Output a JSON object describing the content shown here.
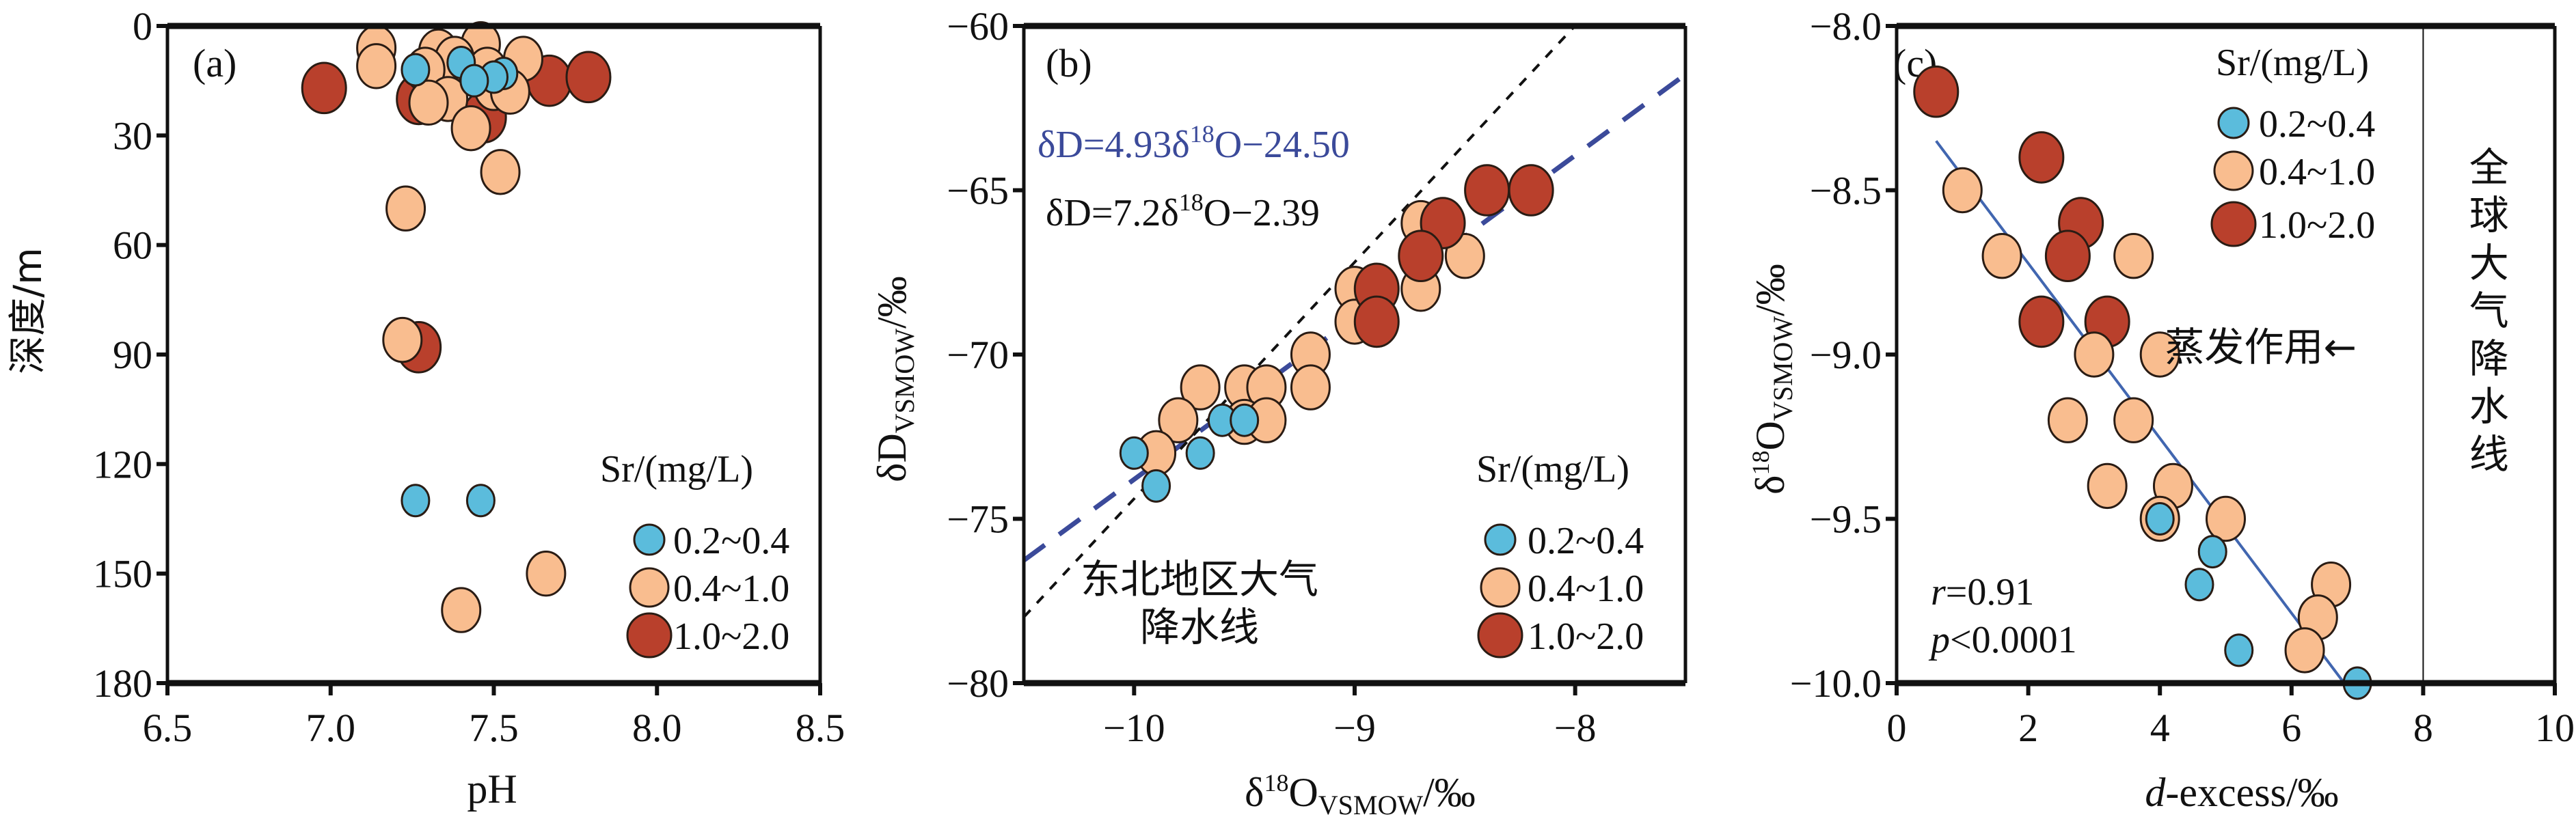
{
  "colors": {
    "low": "#5bbcdc",
    "mid": "#f9bd8f",
    "high": "#b9402c",
    "edge": "#2a1c14",
    "lmwl_local": "#3b4a9a",
    "gmwl": "#111111",
    "regression": "#4166b0"
  },
  "legend": {
    "title": "Sr/(mg/L)",
    "entries": [
      {
        "key": "low",
        "label": "0.2~0.4"
      },
      {
        "key": "mid",
        "label": "0.4~1.0"
      },
      {
        "key": "high",
        "label": "1.0~2.0"
      }
    ]
  },
  "chart_data": [
    {
      "id": "a",
      "type": "scatter",
      "panel_label": "(a)",
      "xlabel": "pH",
      "ylabel": "深度/m",
      "xlim": [
        6.5,
        8.5
      ],
      "ylim": [
        0,
        180
      ],
      "y_inverted": true,
      "xticks": [
        "6.5",
        "7.0",
        "7.5",
        "8.0",
        "8.5"
      ],
      "xtick_values": [
        6.5,
        7.0,
        7.5,
        8.0,
        8.5
      ],
      "yticks": [
        "0",
        "30",
        "60",
        "90",
        "120",
        "150",
        "180"
      ],
      "ytick_values": [
        0,
        30,
        60,
        90,
        120,
        150,
        180
      ],
      "legend_position": "bottom-right",
      "series": [
        {
          "name": "1.0~2.0",
          "key": "high",
          "points": [
            [
              6.98,
              17
            ],
            [
              7.27,
              20
            ],
            [
              7.47,
              25
            ],
            [
              7.67,
              15
            ],
            [
              7.79,
              14
            ],
            [
              7.27,
              88
            ]
          ]
        },
        {
          "name": "0.4~1.0",
          "key": "mid",
          "points": [
            [
              7.14,
              6
            ],
            [
              7.14,
              11
            ],
            [
              7.33,
              7
            ],
            [
              7.46,
              5
            ],
            [
              7.38,
              9
            ],
            [
              7.59,
              9
            ],
            [
              7.29,
              12
            ],
            [
              7.48,
              12
            ],
            [
              7.5,
              17
            ],
            [
              7.55,
              18
            ],
            [
              7.36,
              20
            ],
            [
              7.3,
              21
            ],
            [
              7.43,
              28
            ],
            [
              7.52,
              40
            ],
            [
              7.23,
              50
            ],
            [
              7.22,
              86
            ],
            [
              7.66,
              150
            ],
            [
              7.4,
              160
            ]
          ]
        },
        {
          "name": "0.2~0.4",
          "key": "low",
          "points": [
            [
              7.4,
              10
            ],
            [
              7.26,
              12
            ],
            [
              7.53,
              13
            ],
            [
              7.5,
              14
            ],
            [
              7.44,
              15
            ],
            [
              7.26,
              130
            ],
            [
              7.46,
              130
            ]
          ]
        }
      ]
    },
    {
      "id": "b",
      "type": "scatter",
      "panel_label": "(b)",
      "xlabel": "δ18O_VSMOW/‰",
      "ylabel": "δD_VSMOW/‰",
      "xlim": [
        -10.5,
        -7.5
      ],
      "ylim": [
        -80,
        -60
      ],
      "xticks": [
        "−10",
        "−9",
        "−8"
      ],
      "xtick_values": [
        -10,
        -9,
        -8
      ],
      "yticks": [
        "−60",
        "−65",
        "−70",
        "−75",
        "−80"
      ],
      "ytick_values": [
        -60,
        -65,
        -70,
        -75,
        -80
      ],
      "legend_position": "bottom-right",
      "lines": [
        {
          "name": "local_fit",
          "label": "δD=4.93δ18O−24.50",
          "slope": 4.93,
          "intercept": -24.5,
          "style": "dashed",
          "color_key": "lmwl_local"
        },
        {
          "name": "northeast_lmwl",
          "label": "δD=7.2δ18O−2.39",
          "slope": 7.2,
          "intercept": -2.39,
          "style": "dotted",
          "color_key": "gmwl"
        }
      ],
      "annotations": {
        "eq_blue_main": "δD=4.93δ",
        "eq_blue_sup": "18",
        "eq_blue_tail": "O−24.50",
        "eq_black_main": "δD=7.2δ",
        "eq_black_sup": "18",
        "eq_black_tail": "O−2.39",
        "lmwl_line1": "东北地区大气",
        "lmwl_line2": "降水线"
      },
      "series": [
        {
          "name": "0.4~1.0",
          "key": "mid",
          "points": [
            [
              -8.7,
              -66
            ],
            [
              -8.5,
              -67
            ],
            [
              -8.7,
              -68
            ],
            [
              -9.0,
              -68
            ],
            [
              -9.0,
              -69
            ],
            [
              -9.2,
              -70
            ],
            [
              -9.2,
              -71
            ],
            [
              -9.7,
              -71
            ],
            [
              -9.5,
              -71
            ],
            [
              -9.4,
              -71
            ],
            [
              -9.8,
              -72
            ],
            [
              -9.5,
              -72.05
            ],
            [
              -9.4,
              -72
            ],
            [
              -9.9,
              -73
            ]
          ]
        },
        {
          "name": "1.0~2.0",
          "key": "high",
          "points": [
            [
              -8.4,
              -65
            ],
            [
              -8.2,
              -65
            ],
            [
              -8.6,
              -66
            ],
            [
              -8.7,
              -67
            ],
            [
              -8.9,
              -68
            ],
            [
              -8.9,
              -69
            ]
          ]
        },
        {
          "name": "0.2~0.4",
          "key": "low",
          "points": [
            [
              -9.6,
              -72
            ],
            [
              -9.5,
              -72
            ],
            [
              -10.0,
              -73
            ],
            [
              -9.7,
              -73
            ],
            [
              -9.9,
              -74
            ]
          ]
        }
      ]
    },
    {
      "id": "c",
      "type": "scatter",
      "panel_label": "(c)",
      "xlabel": "d-excess/‰",
      "ylabel": "δ18O_VSMOW/‰",
      "xlim": [
        0,
        10
      ],
      "ylim": [
        -10.0,
        -8.0
      ],
      "xticks": [
        "0",
        "2",
        "4",
        "6",
        "8",
        "10"
      ],
      "xtick_values": [
        0,
        2,
        4,
        6,
        8,
        10
      ],
      "yticks": [
        "−8.0",
        "−8.5",
        "−9.0",
        "−9.5",
        "−10.0"
      ],
      "ytick_values": [
        -8.0,
        -8.5,
        -9.0,
        -9.5,
        -10.0
      ],
      "legend_position": "top-right",
      "regression": {
        "x0": 0.6,
        "y0": -8.35,
        "x1": 6.8,
        "y1": -10.0,
        "r": "0.91",
        "p": "<0.0001"
      },
      "gmwl_x": 8,
      "annotations": {
        "r_label": "r",
        "r_value": "=0.91",
        "p_label": "p",
        "p_value": "<0.0001",
        "evaporation": "蒸发作用←",
        "gmwl_chars": [
          "全",
          "球",
          "大",
          "气",
          "降",
          "水",
          "线"
        ]
      },
      "series": [
        {
          "name": "1.0~2.0",
          "key": "high",
          "points": [
            [
              0.6,
              -8.2
            ],
            [
              2.2,
              -8.4
            ],
            [
              2.8,
              -8.6
            ],
            [
              2.6,
              -8.7
            ],
            [
              2.2,
              -8.9
            ],
            [
              3.2,
              -8.9
            ]
          ]
        },
        {
          "name": "0.4~1.0",
          "key": "mid",
          "points": [
            [
              1.0,
              -8.5
            ],
            [
              1.6,
              -8.7
            ],
            [
              3.6,
              -8.7
            ],
            [
              3.0,
              -9.0
            ],
            [
              4.0,
              -9.0
            ],
            [
              2.6,
              -9.2
            ],
            [
              3.6,
              -9.2
            ],
            [
              3.2,
              -9.4
            ],
            [
              4.2,
              -9.4
            ],
            [
              4.0,
              -9.5
            ],
            [
              5.0,
              -9.5
            ],
            [
              6.6,
              -9.7
            ],
            [
              6.4,
              -9.8
            ],
            [
              6.2,
              -9.9
            ]
          ]
        },
        {
          "name": "0.2~0.4",
          "key": "low",
          "points": [
            [
              4.0,
              -9.5
            ],
            [
              4.8,
              -9.6
            ],
            [
              4.6,
              -9.7
            ],
            [
              5.2,
              -9.9
            ],
            [
              7.0,
              -10.0
            ]
          ]
        }
      ]
    }
  ]
}
